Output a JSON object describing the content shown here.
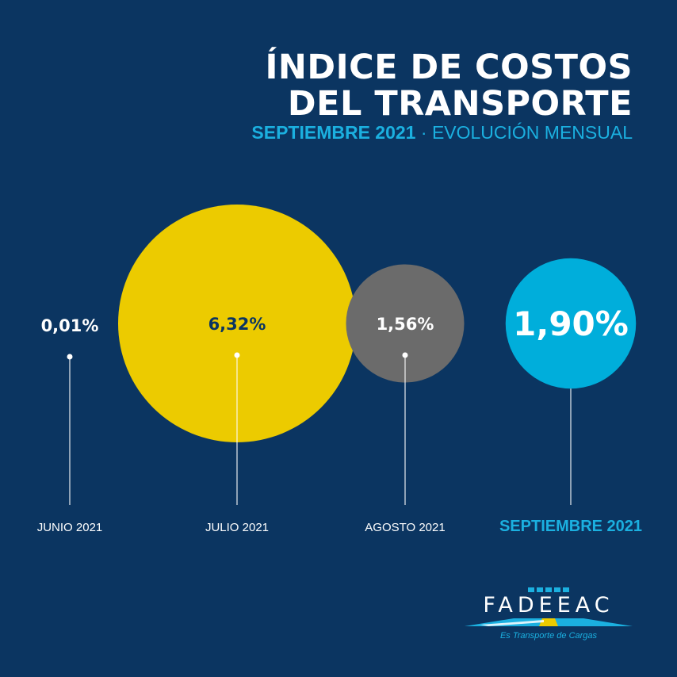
{
  "title": {
    "line1": "ÍNDICE DE COSTOS",
    "line2": "DEL TRANSPORTE"
  },
  "subtitle": {
    "period": "SEPTIEMBRE 2021",
    "separator": " · ",
    "description": "EVOLUCIÓN MENSUAL"
  },
  "chart_data": {
    "type": "bubble",
    "categories": [
      "JUNIO 2021",
      "JULIO 2021",
      "AGOSTO 2021",
      "SEPTIEMBRE 2021"
    ],
    "values": [
      0.01,
      6.32,
      1.56,
      1.9
    ],
    "labels": [
      "0,01%",
      "6,32%",
      "1,56%",
      "1,90%"
    ],
    "colors": [
      "#0b3561",
      "#eccb00",
      "#6b6b6b",
      "#00aedb"
    ],
    "value_label_colors": [
      "#ffffff",
      "#0b3561",
      "#ffffff",
      "#ffffff"
    ],
    "category_label_colors": [
      "#ffffff",
      "#ffffff",
      "#ffffff",
      "#1bb0e0"
    ],
    "highlight": "SEPTIEMBRE 2021"
  },
  "logo": {
    "name": "FADEEAC",
    "tagline": "Es Transporte de Cargas"
  }
}
